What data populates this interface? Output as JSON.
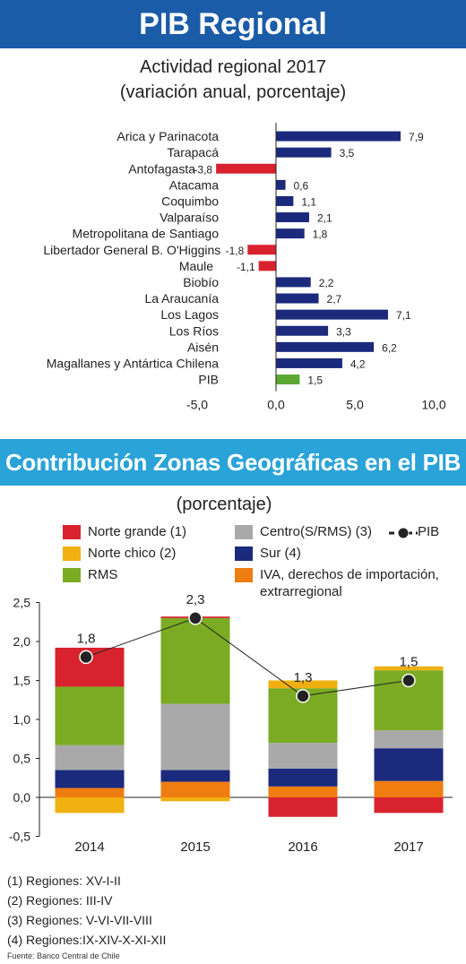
{
  "banner1": "PIB Regional",
  "chart1": {
    "title": "Actividad regional 2017",
    "subtitle": "(variación anual, porcentaje)"
  },
  "banner2": "Contribución Zonas Geográficas en el PIB",
  "chart2": {
    "subtitle": "(porcentaje)",
    "pib_label": "PIB"
  },
  "notes": [
    "(1) Regiones: XV-I-II",
    "(2) Regiones: III-IV",
    "(3) Regiones: V-VI-VII-VIII",
    "(4) Regiones:IX-XIV-X-XI-XII"
  ],
  "source": "Fuente: Banco Central de Chile",
  "colors": {
    "banner1": "#1a5ca8",
    "banner2": "#2aa3d8",
    "positive": "#1b2a7c",
    "negative": "#d8232f",
    "pib": "#5aa832",
    "norte_grande": "#d8232f",
    "norte_chico": "#f0b010",
    "rms": "#7aab22",
    "centro": "#a9a9a9",
    "sur": "#1b2a7c",
    "iva": "#ef7d10"
  },
  "chart_data": [
    {
      "type": "bar",
      "orientation": "horizontal",
      "categories": [
        "Arica y Parinacota",
        "Tarapacá",
        "Antofagasta",
        "Atacama",
        "Coquimbo",
        "Valparaíso",
        "Metropolitana de Santiago",
        "Libertador General B. O'Higgins",
        "Maule",
        "Biobío",
        "La Araucanía",
        "Los Lagos",
        "Los Ríos",
        "Aisén",
        "Magallanes y Antártica Chilena",
        "PIB"
      ],
      "values": [
        7.9,
        3.5,
        -3.8,
        0.6,
        1.1,
        2.1,
        1.8,
        -1.8,
        -1.1,
        2.2,
        2.7,
        7.1,
        3.3,
        6.2,
        4.2,
        1.5
      ],
      "value_labels": [
        "7,9",
        "3,5",
        "-3,8",
        "0,6",
        "1,1",
        "2,1",
        "1,8",
        "-1,8",
        "-1,1",
        "2,2",
        "2,7",
        "7,1",
        "3,3",
        "6,2",
        "4,2",
        "1,5"
      ],
      "xlim": [
        -5,
        10
      ],
      "xticks": [
        -5,
        0,
        5,
        10
      ],
      "xtick_labels": [
        "-5,0",
        "0,0",
        "5,0",
        "10,0"
      ],
      "grid": false
    },
    {
      "type": "bar",
      "stacked": true,
      "categories": [
        "2014",
        "2015",
        "2016",
        "2017"
      ],
      "series": [
        {
          "name": "Norte grande (1)",
          "values": [
            0.5,
            0.02,
            0.0,
            0.0
          ]
        },
        {
          "name": "Norte chico (2)",
          "values": [
            -0.2,
            -0.05,
            0.1,
            0.05
          ]
        },
        {
          "name": "RMS",
          "values": [
            0.75,
            1.1,
            0.7,
            0.77
          ]
        },
        {
          "name": "Centro(S/RMS) (3)",
          "values": [
            0.32,
            0.85,
            0.33,
            0.23
          ]
        },
        {
          "name": "Sur (4)",
          "values": [
            0.23,
            0.15,
            0.23,
            0.42
          ]
        },
        {
          "name": "IVA, derechos de importación, extrarregional",
          "values": [
            0.12,
            0.2,
            0.14,
            0.21
          ]
        },
        {
          "name": "Norte grande negative",
          "values": [
            0.0,
            0.0,
            -0.25,
            -0.2
          ]
        }
      ],
      "line": {
        "name": "PIB",
        "values": [
          1.8,
          2.3,
          1.3,
          1.5
        ],
        "labels": [
          "1,8",
          "2,3",
          "1,3",
          "1,5"
        ]
      },
      "ylim": [
        -0.5,
        2.5
      ],
      "yticks": [
        -0.5,
        0,
        0.5,
        1.0,
        1.5,
        2.0,
        2.5
      ],
      "ytick_labels": [
        "-0,5",
        "0,0",
        "0,5",
        "1,0",
        "1,5",
        "2,0",
        "2,5"
      ],
      "legend": [
        {
          "name": "Norte grande (1)",
          "color": "#d8232f"
        },
        {
          "name": "Norte chico (2)",
          "color": "#f0b010"
        },
        {
          "name": "RMS",
          "color": "#7aab22"
        },
        {
          "name": "Centro(S/RMS) (3)",
          "color": "#a9a9a9"
        },
        {
          "name": "Sur (4)",
          "color": "#1b2a7c"
        },
        {
          "name": "IVA, derechos de importación,",
          "name2": "extrarregional",
          "color": "#ef7d10"
        }
      ],
      "legend_placement": "top",
      "grid": false
    }
  ]
}
